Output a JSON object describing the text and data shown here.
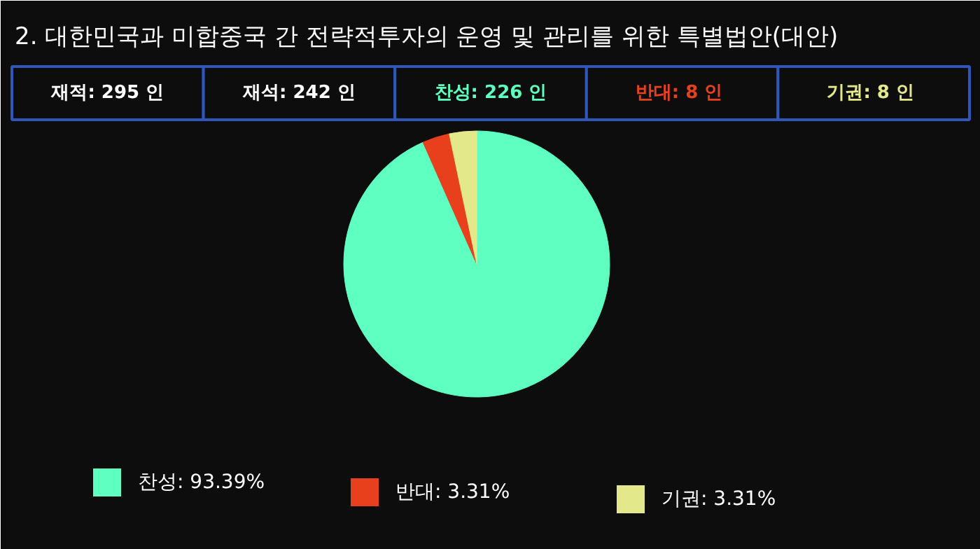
{
  "chart_data": {
    "type": "pie",
    "title": "2. 대한민국과 미합중국 간 전략적투자의 운영 및 관리를 위한 특별법안(대안)",
    "annotations": [
      "재적: 295 인",
      "재석: 242 인",
      "찬성: 226 인",
      "반대:  8 인",
      "기권:  8 인"
    ],
    "categories": [
      "찬성",
      "반대",
      "기권"
    ],
    "values": [
      93.39,
      3.31,
      3.31
    ],
    "value_labels": [
      "93.39%",
      "3.31%",
      "3.31%"
    ],
    "colors": [
      "#5effc0",
      "#e8401c",
      "#e3e88a"
    ],
    "legend": "bottom"
  }
}
